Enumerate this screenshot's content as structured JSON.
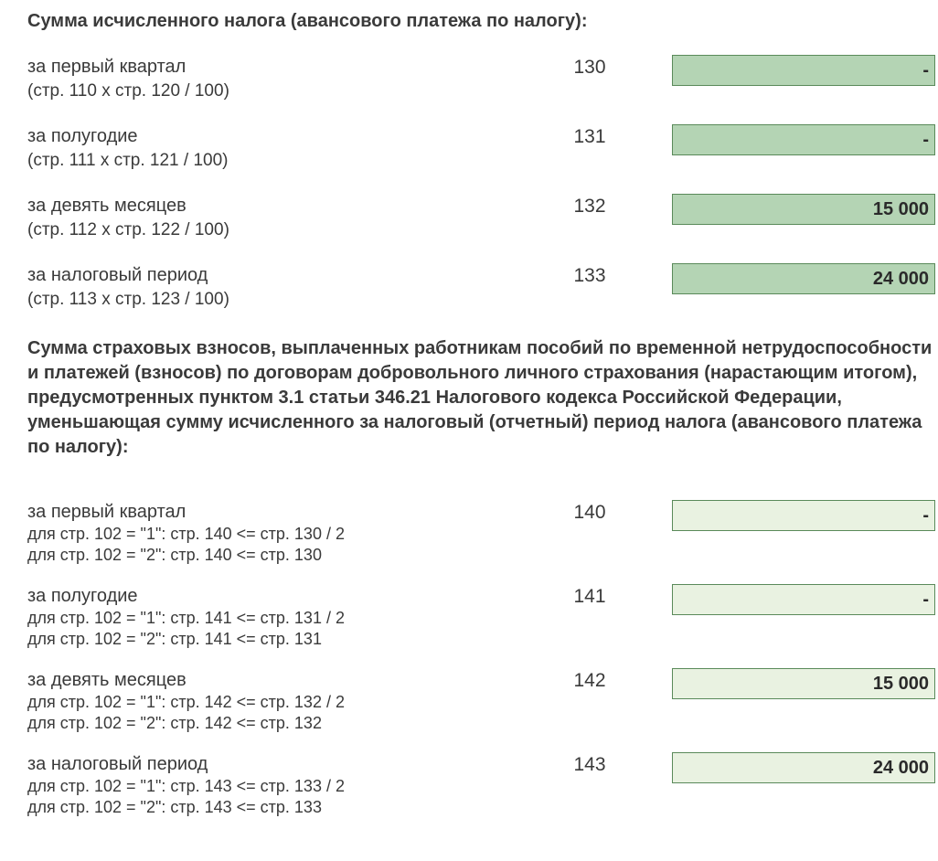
{
  "colors": {
    "text": "#3a3a3a",
    "field_border": "#5a8a5a",
    "field_bg_dark": "#b4d4b4",
    "field_bg_light": "#e9f2e1",
    "page_bg": "#ffffff"
  },
  "typography": {
    "base_font": "Arial",
    "heading_fontsize_pt": 15,
    "body_fontsize_pt": 15,
    "sub_fontsize_pt": 14
  },
  "section1": {
    "heading": "Сумма исчисленного налога (авансового платежа по налогу):",
    "rows": [
      {
        "label": "за первый квартал",
        "sub": "(стр. 110 х стр. 120 / 100)",
        "code": "130",
        "value": "-"
      },
      {
        "label": "за полугодие",
        "sub": "(стр. 111 х стр. 121 / 100)",
        "code": "131",
        "value": "-"
      },
      {
        "label": "за девять месяцев",
        "sub": "(стр. 112 х стр. 122 / 100)",
        "code": "132",
        "value": "15 000"
      },
      {
        "label": "за налоговый период",
        "sub": "(стр. 113 х стр. 123 / 100)",
        "code": "133",
        "value": "24 000"
      }
    ],
    "field_variant": "dark"
  },
  "section2": {
    "heading": "Сумма  страховых  взносов,  выплаченных  работникам пособий  по  временной нетрудоспособности  и  платежей (взносов)  по  договорам  добровольного личного страхования  (нарастающим  итогом), предусмотренных пунктом 3.1 статьи 346.21 Налогового кодекса Российской Федерации, уменьшающая сумму исчисленного  за  налоговый  (отчетный)  период  налога (авансового платежа по налогу):",
    "rows": [
      {
        "label": "за первый квартал",
        "sub1": "для стр. 102 = \"1\": стр. 140 <= стр. 130 / 2",
        "sub2": "для стр. 102 = \"2\": стр. 140 <= стр. 130",
        "code": "140",
        "value": "-"
      },
      {
        "label": "за полугодие",
        "sub1": "для стр. 102 = \"1\": стр. 141 <= стр. 131 / 2",
        "sub2": "для стр. 102 = \"2\": стр. 141 <= стр. 131",
        "code": "141",
        "value": "-"
      },
      {
        "label": "за девять месяцев",
        "sub1": "для стр. 102 = \"1\": стр. 142 <= стр. 132 / 2",
        "sub2": "для стр. 102 = \"2\": стр. 142 <= стр. 132",
        "code": "142",
        "value": "15 000"
      },
      {
        "label": "за налоговый период",
        "sub1": "для стр. 102 = \"1\": стр. 143 <= стр. 133 / 2",
        "sub2": "для стр. 102 = \"2\": стр. 143 <= стр. 133",
        "code": "143",
        "value": "24 000"
      }
    ],
    "field_variant": "light"
  }
}
